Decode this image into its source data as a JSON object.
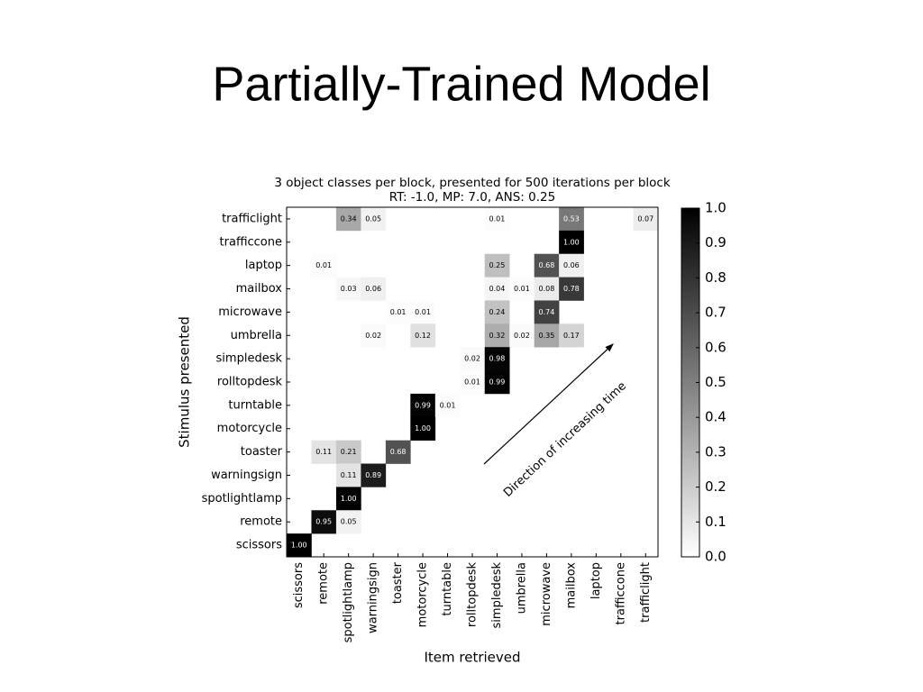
{
  "slide": {
    "title": "Partially-Trained Model"
  },
  "chart_data": {
    "type": "heatmap",
    "title": "3 object classes per block, presented for 500 iterations per block",
    "subtitle": "RT: -1.0, MP: 7.0, ANS: 0.25",
    "x_label": "Item retrieved",
    "y_label": "Stimulus presented",
    "annotation": "Direction of increasing time",
    "x_categories": [
      "scissors",
      "remote",
      "spotlightlamp",
      "warningsign",
      "toaster",
      "motorcycle",
      "turntable",
      "rolltopdesk",
      "simpledesk",
      "umbrella",
      "microwave",
      "mailbox",
      "laptop",
      "trafficcone",
      "trafficlight"
    ],
    "y_categories": [
      "trafficlight",
      "trafficcone",
      "laptop",
      "mailbox",
      "microwave",
      "umbrella",
      "simpledesk",
      "rolltopdesk",
      "turntable",
      "motorcycle",
      "toaster",
      "warningsign",
      "spotlightlamp",
      "remote",
      "scissors"
    ],
    "values": [
      [
        null,
        null,
        0.34,
        0.05,
        null,
        null,
        null,
        null,
        0.01,
        null,
        null,
        0.53,
        null,
        null,
        0.07
      ],
      [
        null,
        null,
        null,
        null,
        null,
        null,
        null,
        null,
        null,
        null,
        null,
        1.0,
        null,
        null,
        null
      ],
      [
        null,
        0.01,
        null,
        null,
        null,
        null,
        null,
        null,
        0.25,
        null,
        0.68,
        0.06,
        null,
        null,
        null
      ],
      [
        null,
        null,
        0.03,
        0.06,
        null,
        null,
        null,
        null,
        0.04,
        0.01,
        0.08,
        0.78,
        null,
        null,
        null
      ],
      [
        null,
        null,
        null,
        null,
        0.01,
        0.01,
        null,
        null,
        0.24,
        null,
        0.74,
        null,
        null,
        null,
        null
      ],
      [
        null,
        null,
        null,
        0.02,
        null,
        0.12,
        null,
        null,
        0.32,
        0.02,
        0.35,
        0.17,
        null,
        null,
        null
      ],
      [
        null,
        null,
        null,
        null,
        null,
        null,
        null,
        0.02,
        0.98,
        null,
        null,
        null,
        null,
        null,
        null
      ],
      [
        null,
        null,
        null,
        null,
        null,
        null,
        null,
        0.01,
        0.99,
        null,
        null,
        null,
        null,
        null,
        null
      ],
      [
        null,
        null,
        null,
        null,
        null,
        0.99,
        0.01,
        null,
        null,
        null,
        null,
        null,
        null,
        null,
        null
      ],
      [
        null,
        null,
        null,
        null,
        null,
        1.0,
        null,
        null,
        null,
        null,
        null,
        null,
        null,
        null,
        null
      ],
      [
        null,
        0.11,
        0.21,
        null,
        0.68,
        null,
        null,
        null,
        null,
        null,
        null,
        null,
        null,
        null,
        null
      ],
      [
        null,
        null,
        0.11,
        0.89,
        null,
        null,
        null,
        null,
        null,
        null,
        null,
        null,
        null,
        null,
        null
      ],
      [
        null,
        null,
        1.0,
        null,
        null,
        null,
        null,
        null,
        null,
        null,
        null,
        null,
        null,
        null,
        null
      ],
      [
        null,
        0.95,
        0.05,
        null,
        null,
        null,
        null,
        null,
        null,
        null,
        null,
        null,
        null,
        null,
        null
      ],
      [
        1.0,
        null,
        null,
        null,
        null,
        null,
        null,
        null,
        null,
        null,
        null,
        null,
        null,
        null,
        null
      ]
    ],
    "value_labels": [
      [
        null,
        null,
        "0.34",
        "0.05",
        null,
        null,
        null,
        null,
        "0.01",
        null,
        null,
        "0.53",
        null,
        null,
        "0.07"
      ],
      [
        null,
        null,
        null,
        null,
        null,
        null,
        null,
        null,
        null,
        null,
        null,
        "1.00",
        null,
        null,
        null
      ],
      [
        null,
        "0.01",
        null,
        null,
        null,
        null,
        null,
        null,
        "0.25",
        null,
        "0.68",
        "0.06",
        null,
        null,
        null
      ],
      [
        null,
        null,
        "0.03",
        "0.06",
        null,
        null,
        null,
        null,
        "0.04",
        "0.01",
        "0.08",
        "0.78",
        null,
        null,
        null
      ],
      [
        null,
        null,
        null,
        null,
        "0.01",
        "0.01",
        null,
        null,
        "0.24",
        null,
        "0.74",
        null,
        null,
        null,
        null
      ],
      [
        null,
        null,
        null,
        "0.02",
        null,
        "0.12",
        null,
        null,
        "0.32",
        "0.02",
        "0.35",
        "0.17",
        null,
        null,
        null
      ],
      [
        null,
        null,
        null,
        null,
        null,
        null,
        null,
        "0.02",
        "0.98",
        null,
        null,
        null,
        null,
        null,
        null
      ],
      [
        null,
        null,
        null,
        null,
        null,
        null,
        null,
        "0.01",
        "0.99",
        null,
        null,
        null,
        null,
        null,
        null
      ],
      [
        null,
        null,
        null,
        null,
        null,
        "0.99",
        "0.01",
        null,
        null,
        null,
        null,
        null,
        null,
        null,
        null
      ],
      [
        null,
        null,
        null,
        null,
        null,
        "1.00",
        null,
        null,
        null,
        null,
        null,
        null,
        null,
        null,
        null
      ],
      [
        null,
        "0.11",
        "0.21",
        null,
        "0.68",
        null,
        null,
        null,
        null,
        null,
        null,
        null,
        null,
        null,
        null
      ],
      [
        null,
        null,
        "0.11",
        "0.89",
        null,
        null,
        null,
        null,
        null,
        null,
        null,
        null,
        null,
        null,
        null
      ],
      [
        null,
        null,
        "1.00",
        null,
        null,
        null,
        null,
        null,
        null,
        null,
        null,
        null,
        null,
        null,
        null
      ],
      [
        null,
        "0.95",
        "0.05",
        null,
        null,
        null,
        null,
        null,
        null,
        null,
        null,
        null,
        null,
        null,
        null
      ],
      [
        "1.00",
        null,
        null,
        null,
        null,
        null,
        null,
        null,
        null,
        null,
        null,
        null,
        null,
        null,
        null
      ]
    ],
    "clim": [
      0,
      1
    ],
    "cticks": [
      {
        "value": 0,
        "label": "0.0"
      },
      0.1,
      0.2,
      0.3,
      0.4,
      0.5,
      0.6,
      0.7,
      0.8,
      0.9,
      {
        "value": 1,
        "label": "1.0"
      }
    ],
    "colormap": [
      "#ffffff",
      "#000000"
    ]
  }
}
